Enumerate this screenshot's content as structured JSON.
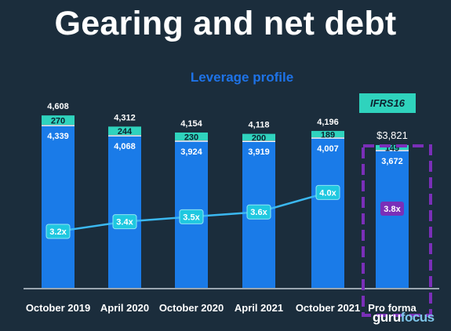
{
  "title": "Gearing and net debt",
  "chart_data": {
    "type": "bar",
    "subtitle": "Leverage profile",
    "badge": "IFRS16",
    "categories": [
      "October 2019",
      "April 2020",
      "October 2020",
      "April 2021",
      "October 2021",
      "Pro forma"
    ],
    "series": [
      {
        "name": "",
        "values": [
          4339,
          4068,
          3924,
          3919,
          4007,
          3672
        ],
        "color": "#1a7be8"
      },
      {
        "name": "IFRS16",
        "values": [
          270,
          244,
          230,
          200,
          189,
          149
        ],
        "color": "#2fd3bd"
      }
    ],
    "totals": [
      "4,608",
      "4,312",
      "4,154",
      "4,118",
      "4,196",
      "$3,821"
    ],
    "leverage": {
      "values": [
        3.2,
        3.4,
        3.5,
        3.6,
        4.0,
        3.8
      ],
      "labels": [
        "3.2x",
        "3.4x",
        "3.5x",
        "3.6x",
        "4.0x",
        "3.8x"
      ],
      "line_color": "#3bb8f0",
      "proforma_color": "#7a2fb8"
    },
    "ylim": [
      0,
      4800
    ],
    "highlight": "Pro forma",
    "highlight_color": "#7a2fb8",
    "grid": false
  },
  "watermark": {
    "part1": "guru",
    "part2": "focus"
  }
}
